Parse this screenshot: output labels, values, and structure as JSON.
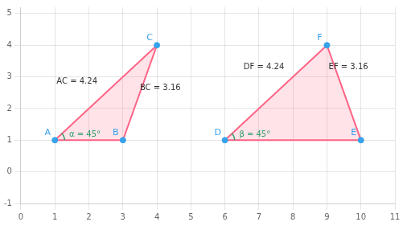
{
  "chart_data": {
    "type": "geometry",
    "xlim": [
      0,
      11
    ],
    "ylim": [
      -1,
      5.2
    ],
    "xticks": [
      0,
      1,
      2,
      3,
      4,
      5,
      6,
      7,
      8,
      9,
      10,
      11
    ],
    "yticks": [
      -1,
      0,
      1,
      2,
      3,
      4,
      5
    ],
    "grid": true,
    "points": [
      {
        "label": "A",
        "x": 1,
        "y": 1
      },
      {
        "label": "B",
        "x": 3,
        "y": 1
      },
      {
        "label": "C",
        "x": 4,
        "y": 4
      },
      {
        "label": "D",
        "x": 6,
        "y": 1
      },
      {
        "label": "E",
        "x": 10,
        "y": 1
      },
      {
        "label": "F",
        "x": 9,
        "y": 4
      }
    ],
    "polygons": [
      [
        "A",
        "B",
        "C"
      ],
      [
        "D",
        "E",
        "F"
      ]
    ],
    "angles": [
      {
        "vertex": "A",
        "from": 0,
        "to": 45,
        "label": "α = 45°",
        "x": 1.42,
        "y": 1.06
      },
      {
        "vertex": "D",
        "from": 0,
        "to": 45,
        "label": "β = 45°",
        "x": 6.42,
        "y": 1.06
      }
    ],
    "annotations": [
      {
        "text": "AC = 4.24",
        "x": 1.05,
        "y": 2.85
      },
      {
        "text": "BC = 3.16",
        "x": 3.5,
        "y": 2.65
      },
      {
        "text": "DF = 4.24",
        "x": 6.55,
        "y": 3.3
      },
      {
        "text": "EF = 3.16",
        "x": 9.05,
        "y": 3.3
      }
    ]
  }
}
